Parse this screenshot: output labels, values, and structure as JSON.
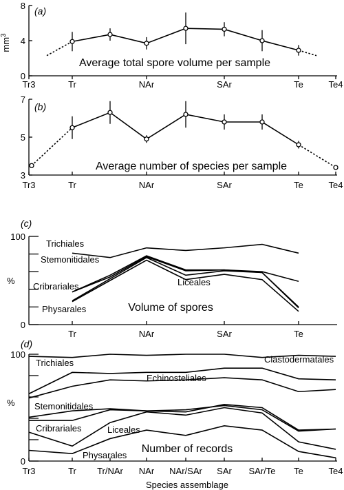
{
  "chart_data": [
    {
      "panel": "(a)",
      "type": "line",
      "title": "Average total spore volume per sample",
      "ylabel": "mm3",
      "ylim": [
        0,
        8
      ],
      "yticks": [
        0,
        4,
        8
      ],
      "categories": [
        "Tr3",
        "Tr",
        "NAr",
        "SAr",
        "Te",
        "Te4"
      ],
      "x": [
        "Tr",
        "Tr/NAr",
        "NAr",
        "NAr/SAr",
        "SAr",
        "SAr/Te",
        "Te"
      ],
      "values": [
        3.9,
        4.7,
        3.7,
        5.4,
        5.3,
        4.0,
        2.9
      ],
      "errors": [
        1.1,
        0.7,
        0.7,
        1.8,
        0.8,
        1.2,
        0.6
      ],
      "extrapolated": {
        "left": 2.3,
        "right": 2.3
      }
    },
    {
      "panel": "(b)",
      "type": "line",
      "title": "Average number of species per sample",
      "ylim": [
        3,
        7
      ],
      "yticks": [
        3,
        5,
        7
      ],
      "categories": [
        "Tr3",
        "Tr",
        "NAr",
        "SAr",
        "Te",
        "Te4"
      ],
      "x": [
        "Tr",
        "Tr/NAr",
        "NAr",
        "NAr/SAr",
        "SAr",
        "SAr/Te",
        "Te"
      ],
      "values": [
        5.5,
        6.3,
        4.9,
        6.2,
        5.8,
        5.8,
        4.6
      ],
      "errors": [
        0.6,
        0.6,
        0.2,
        0.7,
        0.4,
        0.4,
        0.2
      ],
      "endpoints": {
        "Tr3": 3.5,
        "Te4": 3.4
      }
    },
    {
      "panel": "(c)",
      "type": "area",
      "title": "Volume of spores",
      "ylabel": "%",
      "ylim": [
        0,
        100
      ],
      "yticks": [
        0,
        100
      ],
      "categories": [
        "Tr",
        "NAr",
        "SAr",
        "Te"
      ],
      "x": [
        "Tr",
        "Tr/NAr",
        "NAr",
        "NAr/SAr",
        "SAr",
        "SAr/Te",
        "Te"
      ],
      "series": [
        {
          "name": "Physarales",
          "values": [
            26,
            50,
            73,
            51,
            57,
            51,
            15
          ]
        },
        {
          "name": "Cribrariales",
          "values": [
            27,
            52,
            76,
            56,
            61,
            59,
            19
          ]
        },
        {
          "name": "Liceales",
          "values": [
            37,
            54,
            77,
            61,
            62,
            59,
            20
          ]
        },
        {
          "name": "Stemonitidales",
          "values": [
            37,
            56,
            78,
            62,
            62,
            60,
            49
          ]
        },
        {
          "name": "Trichiales",
          "values": [
            81,
            76,
            87,
            84,
            87,
            91,
            81
          ]
        }
      ]
    },
    {
      "panel": "(d)",
      "type": "area",
      "title": "Number of records",
      "xlabel": "Species assemblage",
      "ylabel": "%",
      "ylim": [
        0,
        100
      ],
      "yticks": [
        0,
        100
      ],
      "categories": [
        "Tr3",
        "Tr",
        "Tr/NAr",
        "NAr",
        "NAr/SAr",
        "SAr",
        "SAr/Te",
        "Te",
        "Te4"
      ],
      "series": [
        {
          "name": "Physarales",
          "values": [
            10,
            7,
            21,
            29,
            24,
            33,
            29,
            9,
            3
          ]
        },
        {
          "name": "Cribrariales",
          "values": [
            27,
            14,
            36,
            46,
            43,
            50,
            45,
            18,
            11
          ]
        },
        {
          "name": "Liceales",
          "values": [
            38,
            38,
            48,
            47,
            48,
            52,
            48,
            28,
            30
          ]
        },
        {
          "name": "Stemonitidales",
          "values": [
            41,
            47,
            49,
            47,
            46,
            53,
            50,
            29,
            30
          ]
        },
        {
          "name": "Echinosteliales",
          "values": [
            59,
            70,
            76,
            75,
            76,
            78,
            76,
            65,
            67
          ]
        },
        {
          "name": "Trichiales",
          "values": [
            63,
            83,
            82,
            83,
            83,
            87,
            87,
            77,
            76
          ]
        },
        {
          "name": "Clastodermatales",
          "values": [
            98,
            97,
            100,
            99,
            100,
            100,
            97,
            99,
            98
          ]
        }
      ]
    }
  ],
  "labels": {
    "panel_a": "(a)",
    "panel_b": "(b)",
    "panel_c": "(c)",
    "panel_d": "(d)",
    "ylabel_a": "mm",
    "ylabel_a_exp": "3",
    "ylabel_pct": "%",
    "xlabel": "Species assemblage",
    "title_a": "Average total spore volume per sample",
    "title_b": "Average number of species per sample",
    "title_c": "Volume of spores",
    "title_d": "Number of records",
    "c_trichiales": "Trichiales",
    "c_stemonitidales": "Stemonitidales",
    "c_liceales": "Liceales",
    "c_cribrariales": "Cribrariales",
    "c_physarales": "Physarales",
    "d_trichiales": "Trichiales",
    "d_clastodermatales": "Clastodermatales",
    "d_echinosteliales": "Echinosteliales",
    "d_stemonitidales": "Stemonitidales",
    "d_cribrariales": "Cribrariales",
    "d_liceales": "Liceales",
    "d_physarales": "Physarales"
  }
}
